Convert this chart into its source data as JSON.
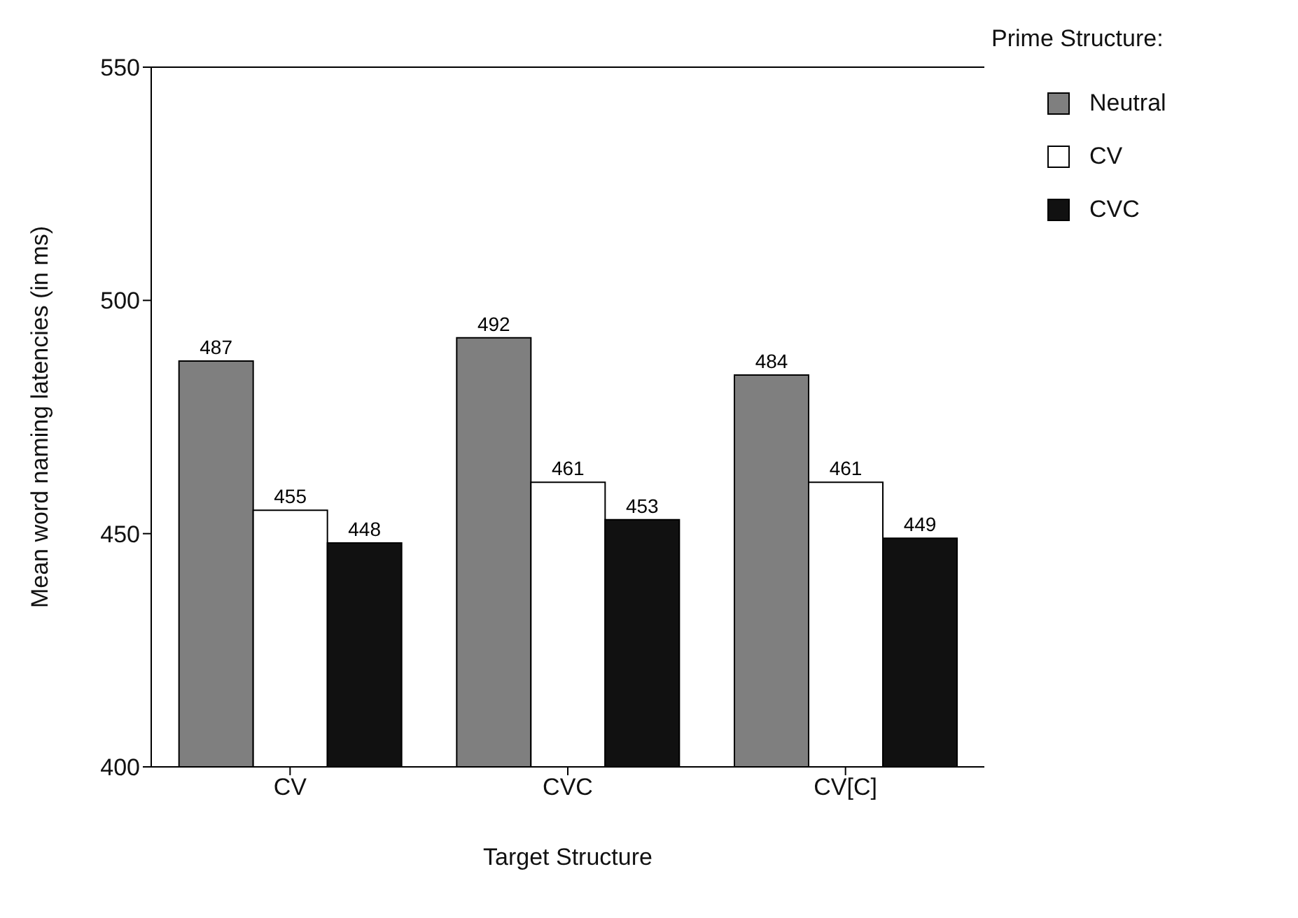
{
  "chart_data": {
    "type": "bar",
    "xlabel": "Target  Structure",
    "ylabel": "Mean word naming latencies (in ms)",
    "legend_title": "Prime  Structure:",
    "categories": [
      "CV",
      "CVC",
      "CV[C]"
    ],
    "series": [
      {
        "name": "Neutral",
        "color": "#7f7f7f",
        "values": [
          487,
          492,
          484
        ]
      },
      {
        "name": "CV",
        "color": "#ffffff",
        "values": [
          455,
          461,
          461
        ]
      },
      {
        "name": "CVC",
        "color": "#111111",
        "values": [
          448,
          453,
          449
        ]
      }
    ],
    "ylim": [
      400,
      550
    ],
    "yticks": [
      400,
      450,
      500,
      550
    ],
    "grid": false,
    "legend": "top right",
    "data_labels": true
  }
}
